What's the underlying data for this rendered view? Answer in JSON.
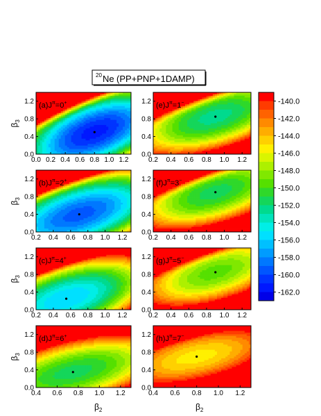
{
  "figure": {
    "title_mass": "20",
    "title_element": "Ne",
    "title_rest": " (PP+PNP+1DAMP)"
  },
  "chart_data": {
    "type": "heatmap",
    "title": "20Ne (PP+PNP+1DAMP)",
    "value_unit": "",
    "colorbar": {
      "ticks": [
        -140.0,
        -142.0,
        -144.0,
        -146.0,
        -148.0,
        -150.0,
        -152.0,
        -154.0,
        -156.0,
        -158.0,
        -160.0,
        -162.0
      ],
      "range": [
        -163.0,
        -139.0
      ],
      "levels": [
        {
          "from": -139.0,
          "to": -140.0,
          "color": "#ff0000"
        },
        {
          "from": -140.0,
          "to": -141.0,
          "color": "#ff3b00"
        },
        {
          "from": -141.0,
          "to": -142.0,
          "color": "#ff6200"
        },
        {
          "from": -142.0,
          "to": -143.0,
          "color": "#ff8a00"
        },
        {
          "from": -143.0,
          "to": -144.0,
          "color": "#ffad00"
        },
        {
          "from": -144.0,
          "to": -145.0,
          "color": "#ffd000"
        },
        {
          "from": -145.0,
          "to": -146.0,
          "color": "#fff000"
        },
        {
          "from": -146.0,
          "to": -147.0,
          "color": "#d9f500"
        },
        {
          "from": -147.0,
          "to": -148.0,
          "color": "#adf000"
        },
        {
          "from": -148.0,
          "to": -149.0,
          "color": "#80e800"
        },
        {
          "from": -149.0,
          "to": -150.0,
          "color": "#55e000"
        },
        {
          "from": -150.0,
          "to": -151.0,
          "color": "#2fd82a"
        },
        {
          "from": -151.0,
          "to": -152.0,
          "color": "#14d65a"
        },
        {
          "from": -152.0,
          "to": -153.0,
          "color": "#00da8e"
        },
        {
          "from": -153.0,
          "to": -154.0,
          "color": "#00e4bb"
        },
        {
          "from": -154.0,
          "to": -155.0,
          "color": "#00eee6"
        },
        {
          "from": -155.0,
          "to": -156.0,
          "color": "#00e0ff"
        },
        {
          "from": -156.0,
          "to": -157.0,
          "color": "#00c0ff"
        },
        {
          "from": -157.0,
          "to": -158.0,
          "color": "#009cff"
        },
        {
          "from": -158.0,
          "to": -159.0,
          "color": "#0078ff"
        },
        {
          "from": -159.0,
          "to": -160.0,
          "color": "#0056ff"
        },
        {
          "from": -160.0,
          "to": -161.0,
          "color": "#0034ff"
        },
        {
          "from": -161.0,
          "to": -162.0,
          "color": "#0018ff"
        },
        {
          "from": -162.0,
          "to": -163.0,
          "color": "#0000e8"
        }
      ]
    },
    "panels": [
      {
        "id": "a",
        "label_prefix": "(a)J",
        "label_pi": "π",
        "label_value": "=0",
        "label_parity": "+",
        "xlim": [
          0.0,
          1.3
        ],
        "ylim": [
          0.0,
          1.4
        ],
        "xticks": [
          "0.0",
          "0.2",
          "0.4",
          "0.6",
          "0.8",
          "1.0",
          "1.2"
        ],
        "yticks": [
          "0.0",
          "0.4",
          "0.8",
          "1.2"
        ],
        "minimum": {
          "beta2": 0.8,
          "beta3": 0.5,
          "energy": -161.5
        },
        "maximum_region": "top-left (β2 small, β3 large)"
      },
      {
        "id": "e",
        "label_prefix": "(e)J",
        "label_pi": "π",
        "label_value": "=1",
        "label_parity": "−",
        "xlim": [
          0.2,
          1.3
        ],
        "ylim": [
          0.0,
          1.4
        ],
        "xticks": [
          "0.2",
          "0.4",
          "0.6",
          "0.8",
          "1.0",
          "1.2"
        ],
        "yticks": [
          "0.0",
          "0.4",
          "0.8",
          "1.2"
        ],
        "minimum": {
          "beta2": 0.9,
          "beta3": 0.85,
          "energy": -152.5
        },
        "maximum_region": "top-left corner"
      },
      {
        "id": "b",
        "label_prefix": "(b)J",
        "label_pi": "π",
        "label_value": "=2",
        "label_parity": "+",
        "xlim": [
          0.2,
          1.3
        ],
        "ylim": [
          0.0,
          1.4
        ],
        "xticks": [
          "0.2",
          "0.4",
          "0.6",
          "0.8",
          "1.0",
          "1.2"
        ],
        "yticks": [
          "0.0",
          "0.4",
          "0.8",
          "1.2"
        ],
        "minimum": {
          "beta2": 0.7,
          "beta3": 0.4,
          "energy": -159.5
        },
        "maximum_region": "top-left corner"
      },
      {
        "id": "f",
        "label_prefix": "(f)J",
        "label_pi": "π",
        "label_value": "=3",
        "label_parity": "−",
        "xlim": [
          0.2,
          1.3
        ],
        "ylim": [
          0.0,
          1.4
        ],
        "xticks": [
          "0.2",
          "0.4",
          "0.6",
          "0.8",
          "1.0",
          "1.2"
        ],
        "yticks": [
          "0.0",
          "0.4",
          "0.8",
          "1.2"
        ],
        "minimum": {
          "beta2": 0.9,
          "beta3": 0.9,
          "energy": -151.5
        },
        "maximum_region": "top-left corner"
      },
      {
        "id": "c",
        "label_prefix": "(c)J",
        "label_pi": "π",
        "label_value": "=4",
        "label_parity": "+",
        "xlim": [
          0.2,
          1.3
        ],
        "ylim": [
          0.0,
          1.4
        ],
        "xticks": [
          "0.2",
          "0.4",
          "0.6",
          "0.8",
          "1.0",
          "1.2"
        ],
        "yticks": [
          "0.0",
          "0.4",
          "0.8",
          "1.2"
        ],
        "minimum": {
          "beta2": 0.55,
          "beta3": 0.25,
          "energy": -156.0
        },
        "maximum_region": "top-left corner"
      },
      {
        "id": "g",
        "label_prefix": "(g)J",
        "label_pi": "π",
        "label_value": "=5",
        "label_parity": "−",
        "xlim": [
          0.2,
          1.3
        ],
        "ylim": [
          0.0,
          1.4
        ],
        "xticks": [
          "0.2",
          "0.4",
          "0.6",
          "0.8",
          "1.0",
          "1.2"
        ],
        "yticks": [
          "0.0",
          "0.4",
          "0.8",
          "1.2"
        ],
        "minimum": {
          "beta2": 0.9,
          "beta3": 0.85,
          "energy": -149.5
        },
        "maximum_region": "top-left corner"
      },
      {
        "id": "d",
        "label_prefix": "(d)J",
        "label_pi": "π",
        "label_value": "=6",
        "label_parity": "+",
        "xlim": [
          0.4,
          1.3
        ],
        "ylim": [
          0.0,
          1.4
        ],
        "xticks": [
          "0.4",
          "0.6",
          "0.8",
          "1.0",
          "1.2"
        ],
        "yticks": [
          "0.0",
          "0.4",
          "0.8",
          "1.2"
        ],
        "minimum": {
          "beta2": 0.75,
          "beta3": 0.35,
          "energy": -151.5
        },
        "maximum_region": "top-left corner"
      },
      {
        "id": "h",
        "label_prefix": "(h)J",
        "label_pi": "π",
        "label_value": "=7",
        "label_parity": "−",
        "xlim": [
          0.4,
          1.3
        ],
        "ylim": [
          0.0,
          1.4
        ],
        "xticks": [
          "0.4",
          "0.6",
          "0.8",
          "1.0",
          "1.2"
        ],
        "yticks": [
          "0.0",
          "0.4",
          "0.8",
          "1.2"
        ],
        "minimum": {
          "beta2": 0.8,
          "beta3": 0.7,
          "energy": -145.5
        },
        "maximum_region": "top-left corner"
      }
    ],
    "xlabel_left": "β2",
    "xlabel_right": "β2",
    "ylabel": "β3"
  }
}
